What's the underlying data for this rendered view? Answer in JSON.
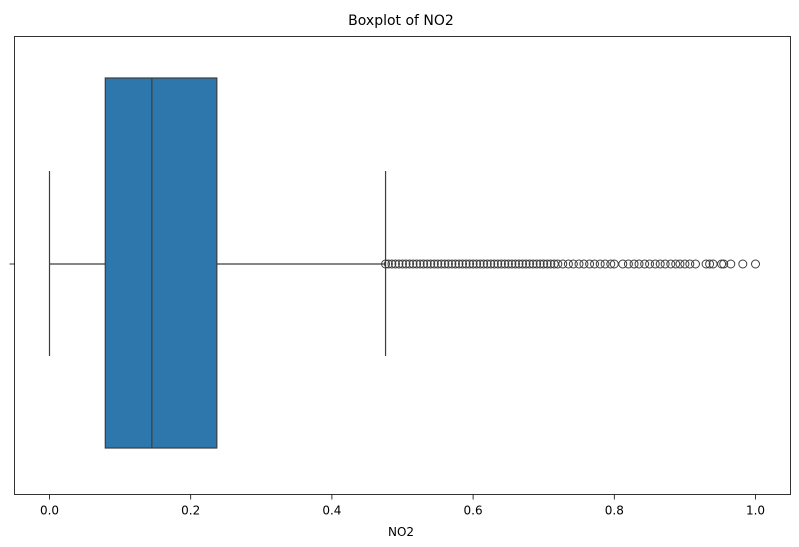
{
  "chart_data": {
    "type": "boxplot",
    "title": "Boxplot of NO2",
    "xlabel": "NO2",
    "ylabel": "",
    "xlim": [
      -0.04,
      1.04
    ],
    "xticks": [
      0.0,
      0.2,
      0.4,
      0.6,
      0.8,
      1.0
    ],
    "xtick_labels": [
      "0.0",
      "0.2",
      "0.4",
      "0.6",
      "0.8",
      "1.0"
    ],
    "orientation": "horizontal",
    "grid": false,
    "box": {
      "min": 0.0,
      "q1": 0.079,
      "median": 0.145,
      "q3": 0.237,
      "whisker_high": 0.476
    },
    "outliers": [
      0.476,
      0.48,
      0.485,
      0.49,
      0.495,
      0.5,
      0.505,
      0.51,
      0.515,
      0.52,
      0.525,
      0.53,
      0.535,
      0.54,
      0.545,
      0.55,
      0.555,
      0.56,
      0.565,
      0.57,
      0.575,
      0.58,
      0.585,
      0.59,
      0.595,
      0.6,
      0.605,
      0.61,
      0.615,
      0.62,
      0.625,
      0.63,
      0.635,
      0.64,
      0.645,
      0.65,
      0.655,
      0.66,
      0.665,
      0.67,
      0.675,
      0.68,
      0.685,
      0.69,
      0.695,
      0.7,
      0.705,
      0.71,
      0.715,
      0.72,
      0.727,
      0.735,
      0.742,
      0.75,
      0.757,
      0.765,
      0.772,
      0.78,
      0.787,
      0.795,
      0.8,
      0.812,
      0.82,
      0.828,
      0.835,
      0.843,
      0.85,
      0.858,
      0.865,
      0.872,
      0.88,
      0.887,
      0.893,
      0.9,
      0.907,
      0.915,
      0.93,
      0.935,
      0.94,
      0.952,
      0.955,
      0.965,
      0.982,
      1.0
    ],
    "colors": {
      "box_fill": "#2e77ad",
      "line": "#3d3d3d"
    }
  }
}
